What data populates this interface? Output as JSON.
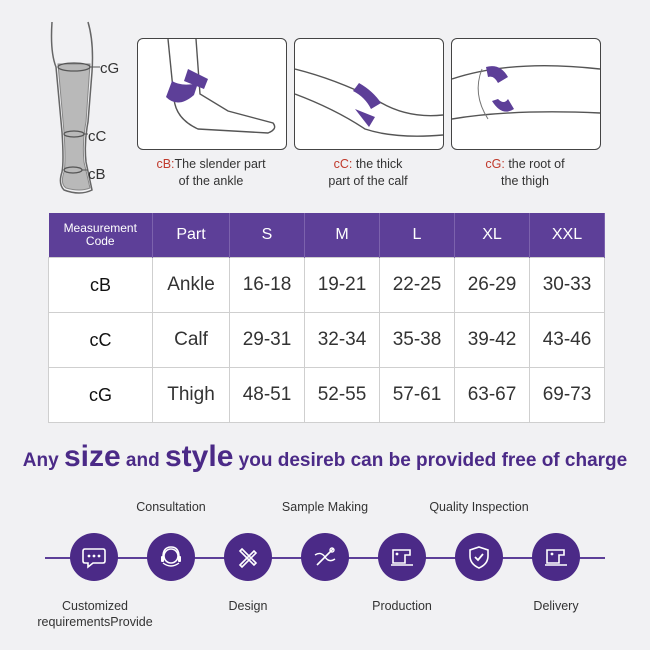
{
  "leg_labels": {
    "cg": "cG",
    "cc": "cC",
    "cb": "cB"
  },
  "panels": [
    {
      "code": "cB:",
      "text_line1": "The slender part",
      "text_line2": "of the ankle"
    },
    {
      "code": "cC:",
      "text_line1": " the thick",
      "text_line2": "part of the calf"
    },
    {
      "code": "cG:",
      "text_line1": " the root of",
      "text_line2": "the thigh"
    }
  ],
  "table": {
    "headers": [
      "Measurement Code",
      "Part",
      "S",
      "M",
      "L",
      "XL",
      "XXL"
    ],
    "rows": [
      {
        "code": "cB",
        "part": "Ankle",
        "values": [
          "16-18",
          "19-21",
          "22-25",
          "26-29",
          "30-33"
        ]
      },
      {
        "code": "cC",
        "part": "Calf",
        "values": [
          "29-31",
          "32-34",
          "35-38",
          "39-42",
          "43-46"
        ]
      },
      {
        "code": "cG",
        "part": "Thigh",
        "values": [
          "48-51",
          "52-55",
          "57-61",
          "63-67",
          "69-73"
        ]
      }
    ]
  },
  "headline": {
    "part1": "Any ",
    "part2": "size",
    "part3": " and ",
    "part4": "style",
    "part5": " you desireb can be provided free of charge"
  },
  "process": {
    "steps": [
      {
        "label": "Customized requirementsProvide",
        "label_line1": "Customized",
        "label_line2": "requirementsProvide",
        "icon": "chat-bubble-icon",
        "position": "bottom"
      },
      {
        "label": "Consultation",
        "icon": "headset-icon",
        "position": "top"
      },
      {
        "label": "Design",
        "icon": "pencil-ruler-icon",
        "position": "bottom"
      },
      {
        "label": "Sample Making",
        "icon": "sewing-icon",
        "position": "top"
      },
      {
        "label": "Production",
        "icon": "sewing-machine-icon",
        "position": "bottom"
      },
      {
        "label": "Quality Inspection",
        "icon": "shield-check-icon",
        "position": "top"
      },
      {
        "label": "Delivery",
        "icon": "sewing-machine-delivery-icon",
        "position": "bottom"
      }
    ]
  },
  "colors": {
    "brand_purple": "#5d3f98",
    "dark_purple": "#4b2a87",
    "code_red": "#c0392b"
  }
}
